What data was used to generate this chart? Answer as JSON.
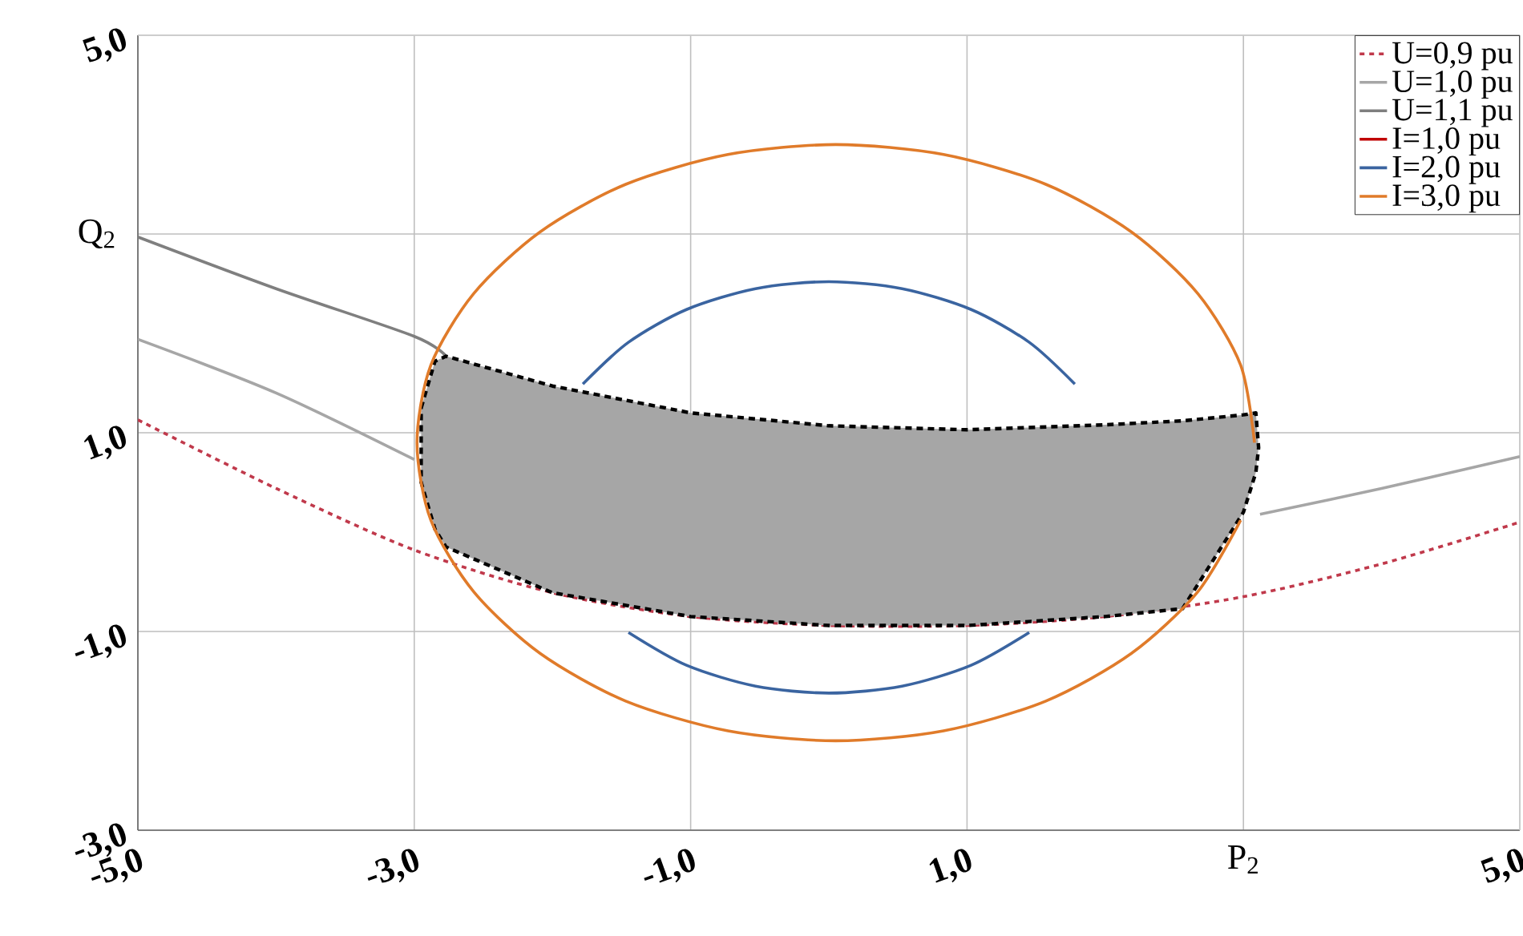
{
  "chart_data": {
    "type": "line",
    "xlabel": "P$_{2}$",
    "ylabel": "Q$_{2}$",
    "xlim": [
      -5,
      5
    ],
    "ylim": [
      -3,
      5
    ],
    "xticks": [
      {
        "value": -5,
        "label": "-5,0"
      },
      {
        "value": -3,
        "label": "-3,0"
      },
      {
        "value": -1,
        "label": "-1,0"
      },
      {
        "value": 1,
        "label": "1,0"
      },
      {
        "value": 3,
        "label": null
      },
      {
        "value": 5,
        "label": "5,0"
      }
    ],
    "yticks": [
      {
        "value": -3,
        "label": "-3,0"
      },
      {
        "value": -1,
        "label": "-1,0"
      },
      {
        "value": 1,
        "label": "1,0"
      },
      {
        "value": 3,
        "label": null
      },
      {
        "value": 5,
        "label": "5,0"
      }
    ],
    "grid": true,
    "legend": "top right",
    "series": [
      {
        "name": "U=0,9 pu",
        "color": "#c0394b",
        "line_style": "dashed",
        "x": [
          -5,
          -4,
          -3,
          -2,
          -1,
          0,
          1,
          2,
          3,
          4,
          5
        ],
        "values": [
          1.13,
          0.44,
          -0.18,
          -0.61,
          -0.85,
          -0.94,
          -0.94,
          -0.85,
          -0.65,
          -0.32,
          0.1
        ]
      },
      {
        "name": "U=1,0 pu",
        "color": "#a6a6a6",
        "x": [
          -5,
          -4,
          -3,
          null,
          3.12,
          4,
          5
        ],
        "values": [
          1.94,
          1.4,
          0.73,
          null,
          0.18,
          0.44,
          0.76
        ]
      },
      {
        "name": "U=1,1 pu",
        "color": "#7f7f7f",
        "x": [
          -5,
          -4,
          -3,
          -2.77
        ],
        "values": [
          2.97,
          2.45,
          1.97,
          1.77
        ]
      },
      {
        "name": "I=1,0 pu",
        "color": "#c00000"
      },
      {
        "name": "I=2,0 pu",
        "color": "#3a64a0",
        "x": [
          1.78,
          1.45,
          1.03,
          0.53,
          0,
          -0.53,
          -1.03,
          -1.45,
          -1.78,
          null,
          -1.45,
          -1.03,
          -0.53,
          0,
          0.53,
          1.03,
          1.45
        ],
        "values": [
          1.49,
          1.91,
          2.24,
          2.45,
          2.52,
          2.45,
          2.24,
          1.91,
          1.49,
          null,
          -1.01,
          -1.34,
          -1.55,
          -1.62,
          -1.55,
          -1.34,
          -1.01
        ]
      },
      {
        "type": "area",
        "color": "#a6a6a6",
        "line_style": "dashed",
        "x": [
          -2.95,
          -2.85,
          -2.77,
          -2,
          -1,
          0,
          1,
          2,
          2.56,
          3,
          3.09,
          3.11,
          3.09,
          3,
          2.56,
          2,
          1,
          0,
          -1,
          -2,
          -2.77,
          -2.85,
          -2.95
        ],
        "values": [
          1.25,
          1.72,
          1.77,
          1.47,
          1.2,
          1.07,
          1.03,
          1.08,
          1.12,
          1.18,
          1.2,
          0.85,
          0.6,
          0.2,
          -0.77,
          -0.85,
          -0.94,
          -0.94,
          -0.85,
          -0.61,
          -0.15,
          0.03,
          0.5
        ]
      },
      {
        "name": "I=3,0 pu",
        "color": "#e07b2a",
        "x": [
          3.08,
          2.98,
          2.67,
          2.19,
          1.57,
          0.83,
          0.05,
          -0.73,
          -1.47,
          -2.09,
          -2.57,
          -2.88,
          -2.98,
          -2.88,
          -2.57,
          -2.09,
          -1.47,
          -0.73,
          0.05,
          0.83,
          1.57,
          2.19,
          2.67,
          2.98
        ],
        "values": [
          0.9,
          1.68,
          2.4,
          3.02,
          3.5,
          3.8,
          3.9,
          3.8,
          3.5,
          3.02,
          2.4,
          1.68,
          0.9,
          0.12,
          -0.6,
          -1.22,
          -1.7,
          -2.0,
          -2.1,
          -2.0,
          -1.7,
          -1.22,
          -0.6,
          0.12
        ]
      }
    ]
  }
}
